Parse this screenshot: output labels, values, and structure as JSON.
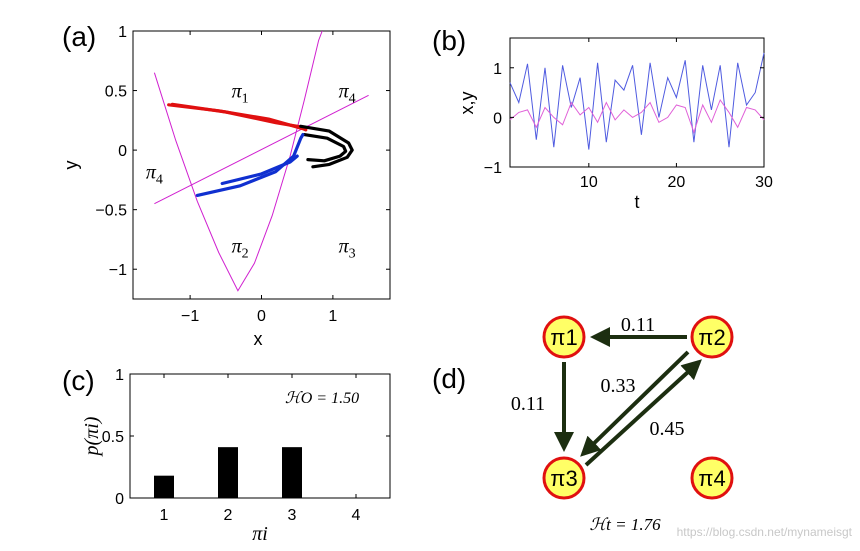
{
  "watermark": "https://blog.csdn.net/mynameisgt",
  "colors": {
    "red": "#e01010",
    "blue": "#1030d0",
    "black": "#000000",
    "magenta": "#d020d0",
    "series_x": "#4f5be0",
    "series_y": "#e060d8",
    "node_fill": "#ffff66",
    "node_stroke": "#e01010",
    "arrow": "#1c2e10"
  },
  "chart_data": [
    {
      "panel": "(a)",
      "type": "scatter",
      "xlabel": "x",
      "ylabel": "y",
      "xlim": [
        -1.8,
        1.8
      ],
      "ylim": [
        -1.25,
        1.0
      ],
      "xticks": [
        "-1",
        "0",
        "1"
      ],
      "yticks": [
        "-1",
        "-0.5",
        "0",
        "0.5",
        "1"
      ],
      "region_labels": [
        {
          "label": "π1",
          "x": -0.3,
          "y": 0.5
        },
        {
          "label": "π4",
          "x": 1.2,
          "y": 0.5
        },
        {
          "label": "π4",
          "x": -1.5,
          "y": -0.18
        },
        {
          "label": "π2",
          "x": -0.3,
          "y": -0.8
        },
        {
          "label": "π3",
          "x": 1.2,
          "y": -0.8
        }
      ],
      "curves": [
        {
          "name": "parabola",
          "color": "magenta",
          "points": [
            [
              -1.5,
              0.65
            ],
            [
              -1.2,
              0.08
            ],
            [
              -0.9,
              -0.43
            ],
            [
              -0.6,
              -0.86
            ],
            [
              -0.33,
              -1.18
            ],
            [
              -0.1,
              -0.95
            ],
            [
              0.15,
              -0.55
            ],
            [
              0.4,
              -0.05
            ],
            [
              0.6,
              0.42
            ],
            [
              0.8,
              0.92
            ],
            [
              0.85,
              1.0
            ]
          ]
        },
        {
          "name": "line",
          "color": "magenta",
          "points": [
            [
              -1.5,
              -0.45
            ],
            [
              1.5,
              0.46
            ]
          ]
        }
      ],
      "attractor_segments": [
        {
          "region": "π1",
          "color": "red",
          "points": [
            [
              -1.3,
              0.38
            ],
            [
              -0.6,
              0.33
            ],
            [
              0.1,
              0.26
            ],
            [
              0.58,
              0.18
            ],
            [
              0.62,
              0.17
            ]
          ]
        },
        {
          "region": "π1",
          "color": "red",
          "points": [
            [
              -1.25,
              0.385
            ],
            [
              -0.5,
              0.32
            ],
            [
              0.2,
              0.23
            ],
            [
              0.6,
              0.19
            ]
          ]
        },
        {
          "region": "π3",
          "color": "black",
          "points": [
            [
              0.55,
              0.2
            ],
            [
              0.95,
              0.16
            ],
            [
              1.22,
              0.06
            ],
            [
              1.27,
              0.0
            ],
            [
              1.2,
              -0.06
            ],
            [
              0.95,
              -0.12
            ],
            [
              0.72,
              -0.14
            ]
          ]
        },
        {
          "region": "π3",
          "color": "black",
          "points": [
            [
              0.6,
              0.13
            ],
            [
              0.92,
              0.1
            ],
            [
              1.15,
              0.03
            ],
            [
              1.18,
              -0.01
            ],
            [
              1.1,
              -0.05
            ],
            [
              0.88,
              -0.09
            ],
            [
              0.65,
              -0.08
            ]
          ]
        },
        {
          "region": "π2",
          "color": "blue",
          "points": [
            [
              -0.9,
              -0.38
            ],
            [
              -0.3,
              -0.3
            ],
            [
              0.2,
              -0.18
            ],
            [
              0.45,
              -0.05
            ],
            [
              0.55,
              0.1
            ],
            [
              0.58,
              0.13
            ]
          ]
        },
        {
          "region": "π2",
          "color": "blue",
          "points": [
            [
              -0.55,
              -0.28
            ],
            [
              0.0,
              -0.2
            ],
            [
              0.4,
              -0.1
            ],
            [
              0.5,
              -0.05
            ]
          ]
        }
      ]
    },
    {
      "panel": "(b)",
      "type": "line",
      "xlabel": "t",
      "ylabel": "x,y",
      "xlim": [
        1,
        30
      ],
      "ylim": [
        -1,
        1.6
      ],
      "xticks": [
        "10",
        "20",
        "30"
      ],
      "yticks": [
        "-1",
        "0",
        "1"
      ],
      "x": [
        1,
        2,
        3,
        4,
        5,
        6,
        7,
        8,
        9,
        10,
        11,
        12,
        13,
        14,
        15,
        16,
        17,
        18,
        19,
        20,
        21,
        22,
        23,
        24,
        25,
        26,
        27,
        28,
        29,
        30
      ],
      "series": [
        {
          "name": "x",
          "color": "series_x",
          "values": [
            0.7,
            0.3,
            1.08,
            -0.45,
            1.0,
            -0.6,
            1.05,
            0.2,
            0.8,
            -0.65,
            1.1,
            -0.5,
            0.75,
            0.55,
            1.05,
            -0.35,
            1.1,
            0.0,
            0.8,
            0.4,
            1.15,
            -0.5,
            1.05,
            0.15,
            1.05,
            -0.6,
            1.1,
            0.25,
            0.5,
            1.3
          ]
        },
        {
          "name": "y",
          "color": "series_y",
          "values": [
            -0.05,
            0.1,
            0.15,
            -0.2,
            0.2,
            0.0,
            -0.15,
            0.3,
            0.05,
            0.2,
            -0.1,
            0.3,
            -0.05,
            0.15,
            0.0,
            0.1,
            0.3,
            -0.1,
            0.0,
            0.25,
            0.2,
            -0.3,
            0.25,
            -0.1,
            0.35,
            0.1,
            -0.2,
            0.2,
            0.15,
            -0.05
          ]
        }
      ]
    },
    {
      "panel": "(c)",
      "type": "bar",
      "xlabel": "πi",
      "ylabel": "p(πi)",
      "categories": [
        "1",
        "2",
        "3",
        "4"
      ],
      "values": [
        0.18,
        0.41,
        0.41,
        0.0
      ],
      "ylim": [
        0,
        1
      ],
      "yticks": [
        "0",
        "0.5",
        "1"
      ],
      "annotation": "ℋO = 1.50"
    },
    {
      "panel": "(d)",
      "type": "diagram",
      "nodes": [
        {
          "id": "pi1",
          "label": "π1"
        },
        {
          "id": "pi2",
          "label": "π2"
        },
        {
          "id": "pi3",
          "label": "π3"
        },
        {
          "id": "pi4",
          "label": "π4"
        }
      ],
      "edges": [
        {
          "from": "pi2",
          "to": "pi1",
          "label": "0.11"
        },
        {
          "from": "pi1",
          "to": "pi3",
          "label": "0.11"
        },
        {
          "from": "pi2",
          "to": "pi3",
          "label": "0.33"
        },
        {
          "from": "pi3",
          "to": "pi2",
          "label": "0.45"
        }
      ],
      "annotation": "ℋt = 1.76"
    }
  ]
}
